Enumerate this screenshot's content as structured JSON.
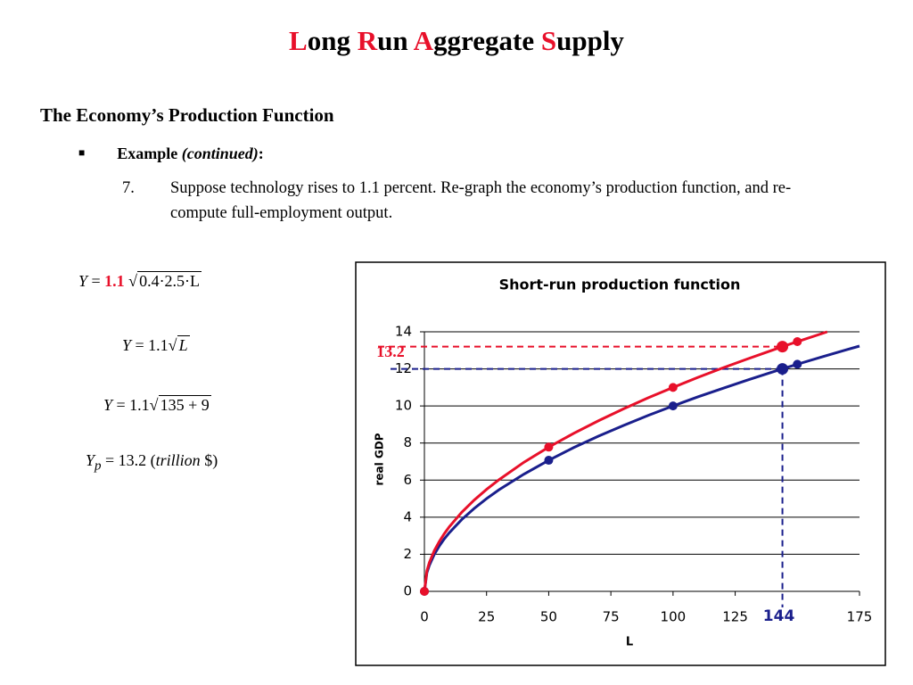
{
  "header": {
    "title_parts": [
      [
        "L",
        "ong "
      ],
      [
        "R",
        "un "
      ],
      [
        "A",
        "ggregate "
      ],
      [
        "S",
        "upply"
      ]
    ]
  },
  "subtitle": "The Economy’s Production Function",
  "bullet": {
    "label": "Example",
    "note": "(continued)",
    "colon": ":"
  },
  "item": {
    "number": "7.",
    "text": "Suppose technology rises to 1.1 percent. Re-graph the economy’s production function, and re-compute full-employment output."
  },
  "equations": [
    {
      "lhs": "Y",
      "eq": " = ",
      "coef": "1.1",
      "radicand": "0.4·2.5·L"
    },
    {
      "lhs": "Y",
      "eq": " = ",
      "coef": "1.1",
      "radicand": "L"
    },
    {
      "lhs": "Y",
      "eq": " = ",
      "coef": "1.1",
      "radicand": "135 + 9"
    }
  ],
  "result": {
    "lhs": "Y",
    "sub": "p",
    "rest": " = 13.2 (",
    "unit": "trillion",
    "end": " $)"
  },
  "chart_data": {
    "type": "line",
    "title": "Short-run production function",
    "x_label": "L",
    "y_label": "real GDP",
    "xlim": [
      0,
      175
    ],
    "ylim": [
      0,
      14
    ],
    "xticks": [
      0,
      25,
      50,
      75,
      100,
      125,
      175
    ],
    "yticks": [
      0,
      2,
      4,
      6,
      8,
      10,
      12,
      14
    ],
    "grid": true,
    "series": [
      {
        "color": "#1a1f8c",
        "x": [
          0,
          1,
          2,
          4,
          6,
          8,
          10,
          15,
          20,
          25,
          30,
          40,
          50,
          60,
          70,
          80,
          90,
          100,
          110,
          120,
          130,
          140,
          144,
          150,
          160,
          170,
          175
        ],
        "values": [
          0,
          1,
          1.41,
          2,
          2.45,
          2.83,
          3.16,
          3.87,
          4.47,
          5,
          5.48,
          6.32,
          7.07,
          7.75,
          8.37,
          8.94,
          9.49,
          10,
          10.49,
          10.95,
          11.4,
          11.83,
          12,
          12.25,
          12.65,
          13.04,
          13.23
        ]
      },
      {
        "color": "#e8102a",
        "x": [
          0,
          1,
          2,
          4,
          6,
          8,
          10,
          15,
          20,
          25,
          30,
          40,
          50,
          60,
          70,
          80,
          90,
          100,
          110,
          120,
          130,
          140,
          144,
          150,
          160,
          162
        ],
        "values": [
          0,
          1.1,
          1.56,
          2.2,
          2.69,
          3.11,
          3.48,
          4.26,
          4.92,
          5.5,
          6.02,
          6.96,
          7.78,
          8.52,
          9.2,
          9.84,
          10.44,
          11,
          11.54,
          12.05,
          12.54,
          13.01,
          13.2,
          13.47,
          13.91,
          14
        ]
      }
    ],
    "points": [
      {
        "color": "#1a1f8c",
        "x": [
          0,
          50,
          100,
          144,
          150
        ],
        "values": [
          0,
          7.07,
          10,
          12,
          12.25
        ]
      },
      {
        "color": "#e8102a",
        "x": [
          0,
          50,
          100,
          144,
          150
        ],
        "values": [
          0,
          7.78,
          11,
          13.2,
          13.47
        ]
      }
    ],
    "reference_lines": [
      {
        "x": 144,
        "y": 13.2,
        "color": "#e8102a"
      },
      {
        "x": 144,
        "y": 12,
        "color": "#1a1f8c"
      }
    ],
    "annotations": [
      {
        "text": "13.2",
        "color": "#e8102a"
      },
      {
        "text": "144",
        "color": "#1a1f8c"
      }
    ]
  }
}
